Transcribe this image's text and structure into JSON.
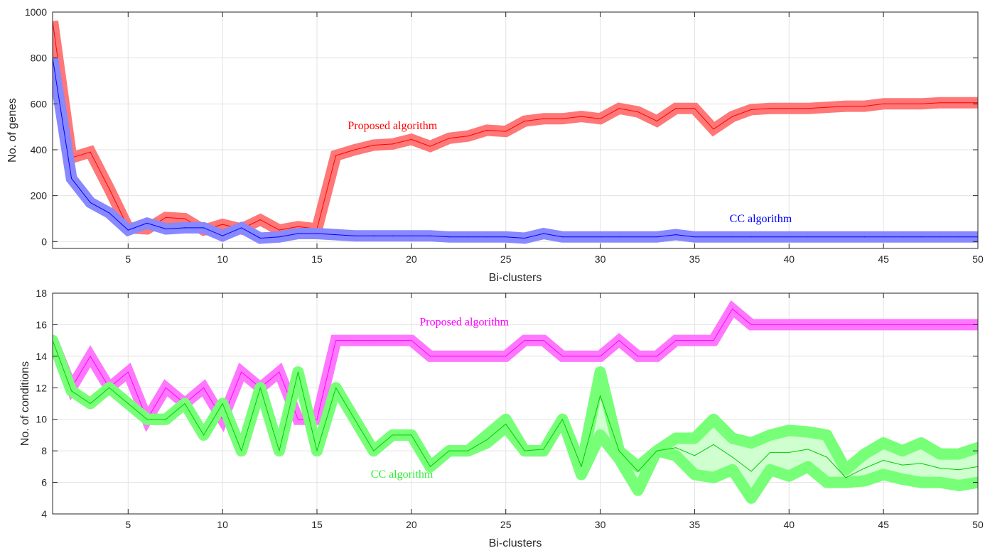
{
  "chart_data": [
    {
      "type": "line",
      "xlabel": "Bi-clusters",
      "ylabel": "No. of genes",
      "xlim": [
        1,
        50
      ],
      "ylim": [
        -30,
        1000
      ],
      "xticks": [
        5,
        10,
        15,
        20,
        25,
        30,
        35,
        40,
        45,
        50
      ],
      "yticks": [
        0,
        200,
        400,
        600,
        800,
        1000
      ],
      "grid": true,
      "legend": "none",
      "x": [
        1,
        2,
        3,
        4,
        5,
        6,
        7,
        8,
        9,
        10,
        11,
        12,
        13,
        14,
        15,
        16,
        17,
        18,
        19,
        20,
        21,
        22,
        23,
        24,
        25,
        26,
        27,
        28,
        29,
        30,
        31,
        32,
        33,
        34,
        35,
        36,
        37,
        38,
        39,
        40,
        41,
        42,
        43,
        44,
        45,
        46,
        47,
        48,
        49,
        50
      ],
      "series": [
        {
          "name": "Proposed algorithm",
          "color": "#ff0000",
          "band_color": "#ff7777",
          "values": [
            960,
            365,
            390,
            230,
            60,
            55,
            105,
            100,
            50,
            75,
            55,
            95,
            50,
            65,
            55,
            375,
            400,
            420,
            425,
            445,
            415,
            450,
            460,
            485,
            480,
            525,
            535,
            535,
            545,
            535,
            580,
            565,
            525,
            580,
            580,
            490,
            545,
            575,
            580,
            580,
            580,
            585,
            590,
            590,
            600,
            600,
            600,
            605,
            605,
            605
          ]
        },
        {
          "name": "CC algorithm",
          "color": "#0000ff",
          "band_color": "#8888ff",
          "values": [
            800,
            275,
            170,
            125,
            50,
            80,
            55,
            60,
            60,
            25,
            60,
            15,
            20,
            35,
            35,
            30,
            25,
            25,
            25,
            25,
            25,
            20,
            20,
            20,
            20,
            15,
            35,
            20,
            20,
            20,
            20,
            20,
            20,
            30,
            20,
            20,
            20,
            20,
            20,
            20,
            20,
            20,
            20,
            20,
            20,
            20,
            20,
            20,
            20,
            20
          ]
        }
      ],
      "annotations": [
        {
          "text": "Proposed algorithm",
          "x": 19,
          "y": 490,
          "color": "#ff0000"
        },
        {
          "text": "CC algorithm",
          "x": 38.5,
          "y": 85,
          "color": "#0000ff"
        }
      ]
    },
    {
      "type": "line",
      "xlabel": "Bi-clusters",
      "ylabel": "No. of conditions",
      "xlim": [
        1,
        50
      ],
      "ylim": [
        4,
        18
      ],
      "xticks": [
        5,
        10,
        15,
        20,
        25,
        30,
        35,
        40,
        45,
        50
      ],
      "yticks": [
        4,
        6,
        8,
        10,
        12,
        14,
        16,
        18
      ],
      "grid": true,
      "legend": "none",
      "x": [
        1,
        2,
        3,
        4,
        5,
        6,
        7,
        8,
        9,
        10,
        11,
        12,
        13,
        14,
        15,
        16,
        17,
        18,
        19,
        20,
        21,
        22,
        23,
        24,
        25,
        26,
        27,
        28,
        29,
        30,
        31,
        32,
        33,
        34,
        35,
        36,
        37,
        38,
        39,
        40,
        41,
        42,
        43,
        44,
        45,
        46,
        47,
        48,
        49,
        50
      ],
      "series": [
        {
          "name": "Proposed algorithm",
          "color": "#ff00ff",
          "band_color": "#ff77ff",
          "values": [
            15,
            12,
            14,
            12,
            13,
            10,
            12,
            11,
            12,
            10,
            13,
            12,
            13,
            10,
            10,
            15,
            15,
            15,
            15,
            15,
            14,
            14,
            14,
            14,
            14,
            15,
            15,
            14,
            14,
            14,
            15,
            14,
            14,
            15,
            15,
            15,
            17,
            16,
            16,
            16,
            16,
            16,
            16,
            16,
            16,
            16,
            16,
            16,
            16,
            16
          ]
        },
        {
          "name": "CC algorithm",
          "color": "#00cc00",
          "band_color": "#77ff77",
          "lower": [
            15,
            11.8,
            11,
            12,
            11,
            10,
            10,
            11,
            9,
            11,
            8,
            12,
            8,
            13,
            8,
            12,
            10,
            8,
            9,
            9,
            7,
            8,
            8,
            8.5,
            9.5,
            8,
            8,
            10,
            6.5,
            9,
            7.5,
            5.5,
            8,
            7.7,
            6.5,
            6.3,
            6.8,
            5,
            6.8,
            6.4,
            7,
            6,
            6,
            6.1,
            6.5,
            6.2,
            6,
            6,
            5.8,
            6
          ],
          "upper": [
            15,
            11.8,
            11,
            12,
            11,
            10,
            10,
            11,
            9,
            11,
            8,
            12,
            8,
            13,
            8,
            12,
            10,
            8,
            9,
            9,
            7,
            8,
            8,
            9,
            10,
            8,
            8,
            10,
            7,
            13,
            8,
            7,
            8,
            8.8,
            8.8,
            10,
            8.8,
            8.5,
            9,
            9.3,
            9.2,
            9,
            6.8,
            7.8,
            8.5,
            8,
            8.5,
            7.8,
            7.8,
            8.2
          ],
          "values": [
            15,
            11.8,
            11,
            12,
            11,
            10,
            10,
            11,
            9,
            11,
            8,
            12,
            8,
            13,
            8,
            12,
            10,
            8,
            9,
            9,
            7,
            8,
            8,
            8.7,
            9.7,
            8,
            8.1,
            10,
            7,
            11.5,
            8,
            6.7,
            8,
            8.2,
            7.7,
            8.4,
            7.6,
            6.7,
            7.9,
            7.9,
            8.1,
            7.6,
            6.3,
            6.9,
            7.4,
            7.1,
            7.2,
            6.9,
            6.8,
            7
          ]
        }
      ],
      "annotations": [
        {
          "text": "Proposed algorithm",
          "x": 22.8,
          "y": 15.95,
          "color": "#ff00ff"
        },
        {
          "text": "CC algorithm",
          "x": 19.5,
          "y": 6.3,
          "color": "#33ee33"
        }
      ]
    }
  ]
}
